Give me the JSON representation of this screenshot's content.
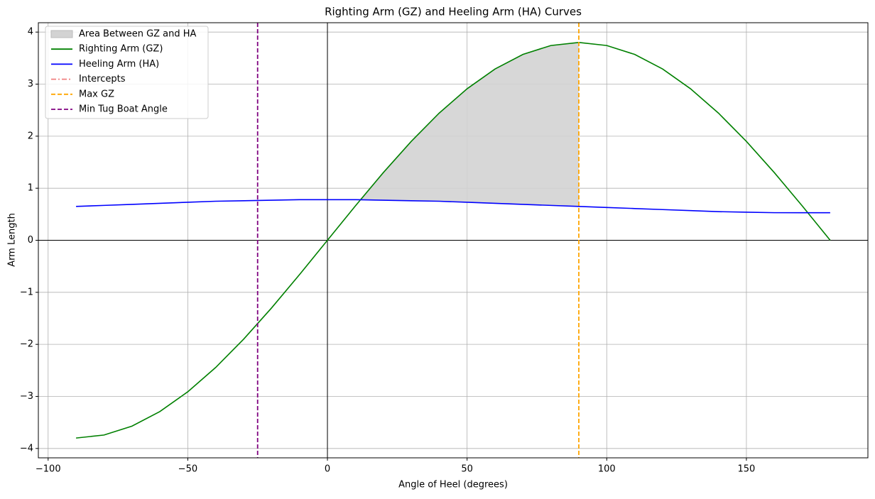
{
  "chart_data": {
    "type": "line",
    "title": "Righting Arm (GZ) and Heeling Arm (HA) Curves",
    "x_label": "Angle of Heel (degrees)",
    "y_label": "Arm Length",
    "x": [
      -90,
      -80,
      -70,
      -60,
      -50,
      -40,
      -30,
      -20,
      -10,
      0,
      10,
      20,
      30,
      40,
      50,
      60,
      70,
      80,
      90,
      100,
      110,
      120,
      130,
      140,
      150,
      160,
      170,
      180
    ],
    "series": [
      {
        "name": "Righting Arm (GZ)",
        "color": "green",
        "values": [
          -3.8,
          -3.742,
          -3.571,
          -3.291,
          -2.911,
          -2.443,
          -1.9,
          -1.3,
          -0.66,
          0,
          0.66,
          1.3,
          1.9,
          2.443,
          2.911,
          3.291,
          3.571,
          3.742,
          3.8,
          3.742,
          3.571,
          3.291,
          2.911,
          2.443,
          1.9,
          1.3,
          0.66,
          0
        ]
      },
      {
        "name": "Heeling Arm (HA)",
        "color": "blue",
        "values": [
          0.65,
          0.67,
          0.69,
          0.71,
          0.73,
          0.75,
          0.76,
          0.77,
          0.78,
          0.78,
          0.78,
          0.77,
          0.76,
          0.75,
          0.73,
          0.71,
          0.69,
          0.67,
          0.65,
          0.63,
          0.61,
          0.59,
          0.57,
          0.55,
          0.54,
          0.53,
          0.53,
          0.53
        ]
      }
    ],
    "fill_between": {
      "name": "Area Between GZ and HA",
      "color": "#d3d3d3",
      "x_range": [
        12,
        90
      ]
    },
    "intercepts": {
      "name": "Intercepts",
      "color": "#f08080",
      "style": "dashdot"
    },
    "vlines": [
      {
        "name": "Max GZ",
        "color": "orange",
        "x": 90
      },
      {
        "name": "Min Tug Boat Angle",
        "color": "purple",
        "x": -25
      }
    ],
    "xlim": [
      -103.5,
      193.5
    ],
    "ylim": [
      -4.18,
      4.18
    ],
    "xticks": [
      {
        "value": -100,
        "label": "−100"
      },
      {
        "value": -50,
        "label": "−50"
      },
      0,
      50,
      100,
      150
    ],
    "yticks": [
      {
        "value": -4,
        "label": "−4"
      },
      {
        "value": -3,
        "label": "−3"
      },
      {
        "value": -2,
        "label": "−2"
      },
      {
        "value": -1,
        "label": "−1"
      },
      0,
      1,
      2,
      3,
      4
    ],
    "grid": true,
    "zero_lines": true,
    "legend_position": "upper-left"
  }
}
